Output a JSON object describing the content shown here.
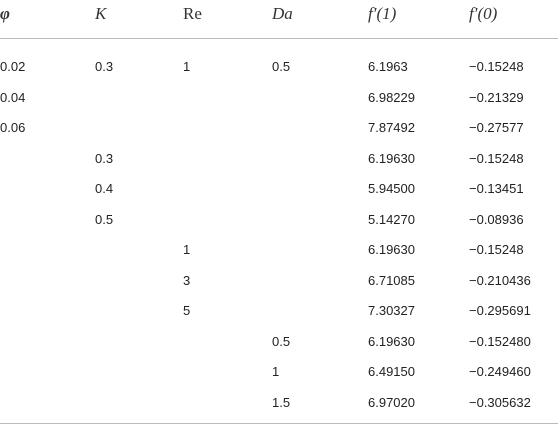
{
  "table": {
    "header": [
      "φ",
      "K",
      "Re",
      "Da",
      "f′(1)",
      "f′(0)"
    ],
    "rows": [
      [
        "0.02",
        "0.3",
        "1",
        "0.5",
        "6.1963",
        "−0.15248"
      ],
      [
        "0.04",
        null,
        null,
        null,
        "6.98229",
        "−0.21329"
      ],
      [
        "0.06",
        null,
        null,
        null,
        "7.87492",
        "−0.27577"
      ],
      [
        null,
        "0.3",
        null,
        null,
        "6.19630",
        "−0.15248"
      ],
      [
        null,
        "0.4",
        null,
        null,
        "5.94500",
        "−0.13451"
      ],
      [
        null,
        "0.5",
        null,
        null,
        "5.14270",
        "−0.08936"
      ],
      [
        null,
        null,
        "1",
        null,
        "6.19630",
        "−0.15248"
      ],
      [
        null,
        null,
        "3",
        null,
        "6.71085",
        "−0.210436"
      ],
      [
        null,
        null,
        "5",
        null,
        "7.30327",
        "−0.295691"
      ],
      [
        null,
        null,
        null,
        "0.5",
        "6.19630",
        "−0.152480"
      ],
      [
        null,
        null,
        null,
        "1",
        "6.49150",
        "−0.249460"
      ],
      [
        null,
        null,
        null,
        "1.5",
        "6.97020",
        "−0.305632"
      ]
    ]
  }
}
